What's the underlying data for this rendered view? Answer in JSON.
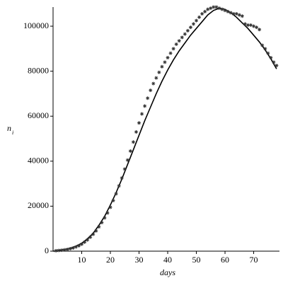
{
  "chart_data": {
    "type": "line",
    "xlabel": "days",
    "ylabel": "n",
    "ylabel_sub": "i",
    "xlim": [
      0,
      79
    ],
    "ylim": [
      0,
      108500
    ],
    "xticks": [
      10,
      20,
      30,
      40,
      50,
      60,
      70
    ],
    "yticks": [
      0,
      20000,
      40000,
      60000,
      80000,
      100000
    ],
    "grid": false,
    "series": [
      {
        "style": "line",
        "color": "#000000",
        "x": [
          0,
          2,
          4,
          6,
          8,
          10,
          12,
          14,
          16,
          18,
          20,
          22,
          24,
          26,
          28,
          30,
          32,
          34,
          36,
          38,
          40,
          42,
          44,
          46,
          48,
          50,
          52,
          54,
          56,
          58,
          60,
          62,
          64,
          66,
          68,
          70,
          72,
          74,
          76,
          78
        ],
        "values": [
          0,
          300,
          700,
          1300,
          2200,
          3500,
          5500,
          8000,
          11500,
          15500,
          20500,
          26000,
          32000,
          38500,
          45000,
          51500,
          58000,
          64000,
          70000,
          75500,
          80500,
          85000,
          89000,
          92500,
          96000,
          99000,
          102000,
          105000,
          107000,
          108000,
          107500,
          106000,
          104000,
          101500,
          99000,
          96000,
          93000,
          89500,
          85500,
          81000
        ]
      },
      {
        "style": "markers",
        "color": "#333333",
        "x": [
          1,
          2,
          3,
          4,
          5,
          6,
          7,
          8,
          9,
          10,
          11,
          12,
          13,
          14,
          15,
          16,
          17,
          18,
          19,
          20,
          21,
          22,
          23,
          24,
          25,
          26,
          27,
          28,
          29,
          30,
          31,
          32,
          33,
          34,
          35,
          36,
          37,
          38,
          39,
          40,
          41,
          42,
          43,
          44,
          45,
          46,
          47,
          48,
          49,
          50,
          51,
          52,
          53,
          54,
          55,
          56,
          57,
          58,
          59,
          60,
          61,
          62,
          63,
          64,
          65,
          66,
          67,
          68,
          69,
          70,
          71,
          72,
          73,
          74,
          75,
          76,
          77,
          78
        ],
        "values": [
          200,
          300,
          450,
          600,
          800,
          1100,
          1400,
          1900,
          2400,
          3100,
          4000,
          5000,
          6200,
          7500,
          9000,
          10800,
          12700,
          14800,
          17000,
          19500,
          22500,
          25500,
          29000,
          32500,
          36500,
          40500,
          44500,
          48500,
          53000,
          57000,
          61000,
          64500,
          68000,
          71500,
          74500,
          77000,
          79500,
          82000,
          84000,
          86000,
          88000,
          90000,
          92000,
          93500,
          95000,
          96500,
          98000,
          99500,
          101000,
          102500,
          104000,
          105500,
          106500,
          107500,
          108000,
          108500,
          108500,
          108000,
          107500,
          107000,
          106500,
          106000,
          105500,
          105500,
          105000,
          104500,
          101000,
          100500,
          100500,
          100000,
          99500,
          98500,
          91500,
          90000,
          88000,
          86000,
          84000,
          82500
        ]
      }
    ]
  }
}
